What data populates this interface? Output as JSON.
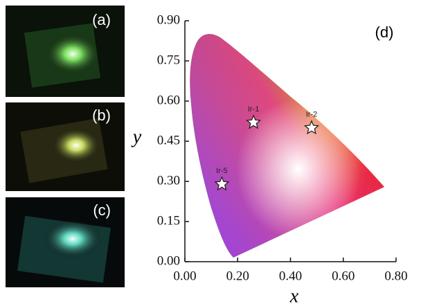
{
  "panels": [
    "(a)",
    "(b)",
    "(c)"
  ],
  "chart_data": {
    "type": "scatter",
    "panel_label": "(d)",
    "x_label": "x",
    "y_label": "y",
    "x": [
      0.26,
      0.48,
      0.14
    ],
    "values": [
      0.52,
      0.5,
      0.29
    ],
    "point_labels": [
      "Ir-1",
      "Ir-2",
      "Ir-5"
    ],
    "color": "#ffffff",
    "xlim": [
      0,
      0.8
    ],
    "ylim": [
      0,
      0.9
    ],
    "xticks": [
      {
        "value": 0,
        "label": "0.00"
      },
      {
        "value": 0.2,
        "label": "0.20"
      },
      {
        "value": 0.4,
        "label": "0.40"
      },
      {
        "value": 0.6,
        "label": "0.60"
      },
      {
        "value": 0.8,
        "label": "0.80"
      }
    ],
    "yticks": [
      {
        "value": 0,
        "label": "0.00"
      },
      {
        "value": 0.15,
        "label": "0.15"
      },
      {
        "value": 0.3,
        "label": "0.30"
      },
      {
        "value": 0.45,
        "label": "0.45"
      },
      {
        "value": 0.6,
        "label": "0.60"
      },
      {
        "value": 0.75,
        "label": "0.75"
      },
      {
        "value": 0.9,
        "label": "0.90"
      }
    ]
  }
}
